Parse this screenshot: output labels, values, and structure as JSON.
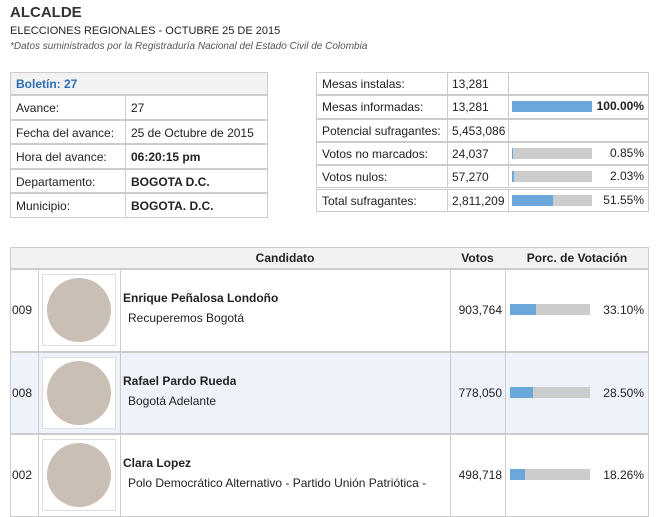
{
  "header": {
    "title": "ALCALDE",
    "subtitle": "ELECCIONES REGIONALES - OCTUBRE 25 DE 2015",
    "note": "*Datos suministrados por la Registraduría Nacional del Estado Civil de Colombia"
  },
  "bulletin": {
    "title": "Boletín: 27",
    "rows": [
      [
        "Avance:",
        "27"
      ],
      [
        "Fecha del avance:",
        "25 de Octubre de 2015"
      ],
      [
        "Hora del avance:",
        "06:20:15 pm"
      ],
      [
        "Departamento:",
        "BOGOTA D.C."
      ],
      [
        "Municipio:",
        "BOGOTA. D.C."
      ]
    ]
  },
  "summary": {
    "rows": [
      {
        "label": "Mesas instalas:",
        "value": "13,281"
      },
      {
        "label": "Mesas informadas:",
        "value": "13,281",
        "percent": {
          "value": 100.0,
          "label": "100.00%"
        }
      },
      {
        "label": "Potencial sufragantes:",
        "value": "5,453,086"
      },
      {
        "label": "Votos no marcados:",
        "value": "24,037",
        "percent": {
          "value": 0.85,
          "label": "0.85%"
        }
      },
      {
        "label": "Votos nulos:",
        "value": "57,270",
        "percent": {
          "value": 2.03,
          "label": "2.03%"
        }
      },
      {
        "label": "Total sufragantes:",
        "value": "2,811,209",
        "percent": {
          "value": 51.55,
          "label": "51.55%"
        }
      }
    ]
  },
  "candidates": {
    "columns": [
      "Candidato",
      "Votos",
      "Porc. de Votación"
    ],
    "rows": [
      {
        "code": "009",
        "name": "Enrique Peñalosa Londoño",
        "party": "Recuperemos Bogotá",
        "votes": "903,764",
        "percent": {
          "value": 33.1,
          "label": "33.10%"
        }
      },
      {
        "code": "008",
        "name": "Rafael Pardo Rueda",
        "party": "Bogotá Adelante",
        "votes": "778,050",
        "percent": {
          "value": 28.5,
          "label": "28.50%"
        }
      },
      {
        "code": "002",
        "name": "Clara Lopez",
        "party": "Polo Democrático Alternativo - Partido Unión Patriótica -",
        "votes": "498,718",
        "percent": {
          "value": 18.26,
          "label": "18.26%"
        }
      }
    ]
  }
}
